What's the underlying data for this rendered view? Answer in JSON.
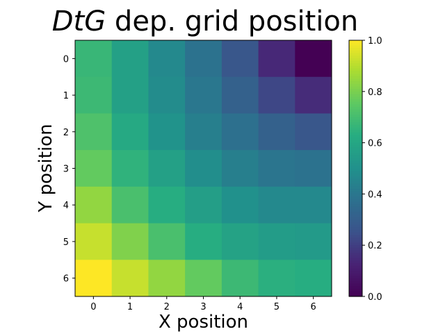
{
  "chart_data": {
    "type": "heatmap",
    "title_italic": "DtG",
    "title_rest": " dep. grid position",
    "xlabel": "X position",
    "ylabel": "Y position",
    "x_categories": [
      "0",
      "1",
      "2",
      "3",
      "4",
      "5",
      "6"
    ],
    "y_categories": [
      "0",
      "1",
      "2",
      "3",
      "4",
      "5",
      "6"
    ],
    "values": [
      [
        0.67,
        0.57,
        0.47,
        0.38,
        0.27,
        0.14,
        0.0
      ],
      [
        0.68,
        0.57,
        0.48,
        0.4,
        0.31,
        0.22,
        0.15
      ],
      [
        0.72,
        0.61,
        0.51,
        0.43,
        0.37,
        0.31,
        0.27
      ],
      [
        0.76,
        0.65,
        0.57,
        0.49,
        0.43,
        0.39,
        0.38
      ],
      [
        0.84,
        0.71,
        0.63,
        0.56,
        0.5,
        0.47,
        0.47
      ],
      [
        0.92,
        0.81,
        0.71,
        0.63,
        0.58,
        0.55,
        0.54
      ],
      [
        1.0,
        0.92,
        0.84,
        0.76,
        0.68,
        0.64,
        0.63
      ]
    ],
    "colormap": "viridis",
    "colorbar": {
      "range": [
        0.0,
        1.0
      ],
      "ticks": [
        "0.0",
        "0.2",
        "0.4",
        "0.6",
        "0.8",
        "1.0"
      ]
    },
    "grid": false
  }
}
